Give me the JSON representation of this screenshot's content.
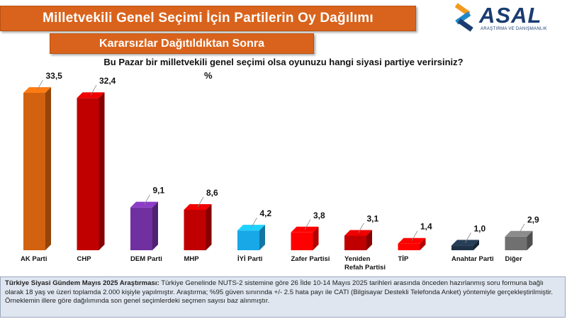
{
  "header": {
    "title": "Milletvekili Genel Seçimi İçin Partilerin Oy Dağılımı",
    "subtitle": "Kararsızlar Dağıtıldıktan Sonra"
  },
  "logo": {
    "name": "ASAL",
    "tagline": "ARAŞTIRMA VE DANIŞMANLIK",
    "colors": [
      "#f39a1e",
      "#1f88c9",
      "#1a3c70"
    ]
  },
  "question": "Bu Pazar bir milletvekili genel seçimi olsa oyunuzu hangi siyasi partiye verirsiniz?",
  "unit": "%",
  "chart_data": {
    "type": "bar",
    "categories": [
      "AK Parti",
      "CHP",
      "DEM Parti",
      "MHP",
      "İYİ Parti",
      "Zafer Partisi",
      "Yeniden Refah Partisi",
      "TİP",
      "Anahtar Parti",
      "Diğer"
    ],
    "category_lines": [
      [
        "AK Parti"
      ],
      [
        "CHP"
      ],
      [
        "DEM Parti"
      ],
      [
        "MHP"
      ],
      [
        "İYİ Parti"
      ],
      [
        "Zafer Partisi"
      ],
      [
        "Yeniden",
        "Refah Partisi"
      ],
      [
        "TİP"
      ],
      [
        "Anahtar Parti"
      ],
      [
        "Diğer"
      ]
    ],
    "values": [
      33.5,
      32.4,
      9.1,
      8.6,
      4.2,
      3.8,
      3.1,
      1.4,
      1.0,
      2.9
    ],
    "value_labels": [
      "33,5",
      "32,4",
      "9,1",
      "8,6",
      "4,2",
      "3,8",
      "3,1",
      "1,4",
      "1,0",
      "2,9"
    ],
    "colors": [
      "#d2620f",
      "#c00000",
      "#7030a0",
      "#c00000",
      "#18a8e8",
      "#ff0000",
      "#c00000",
      "#ff0000",
      "#1f3247",
      "#707070"
    ],
    "ylim": [
      0,
      35
    ],
    "grid": false,
    "legend": "none"
  },
  "footer": {
    "heading": "Türkiye Siyasi Gündem Mayıs 2025 Araştırması:",
    "body": "Türkiye Genelinde NUTS-2 sistemine göre 26 İlde 10-14 Mayıs 2025 tarihleri arasında önceden hazırlanmış soru formuna bağlı olarak 18 yaş ve üzeri toplamda 2.000 kişiyle yapılmıştır. Araştırma; %95 güven sınırında +/- 2.5 hata payı ile CATI (Bilgisayar Destekli Telefonda Anket) yöntemiyle gerçekleştirilmiştir. Örneklemin illere göre dağılımında son genel seçimlerdeki seçmen sayısı baz alınmıştır."
  }
}
